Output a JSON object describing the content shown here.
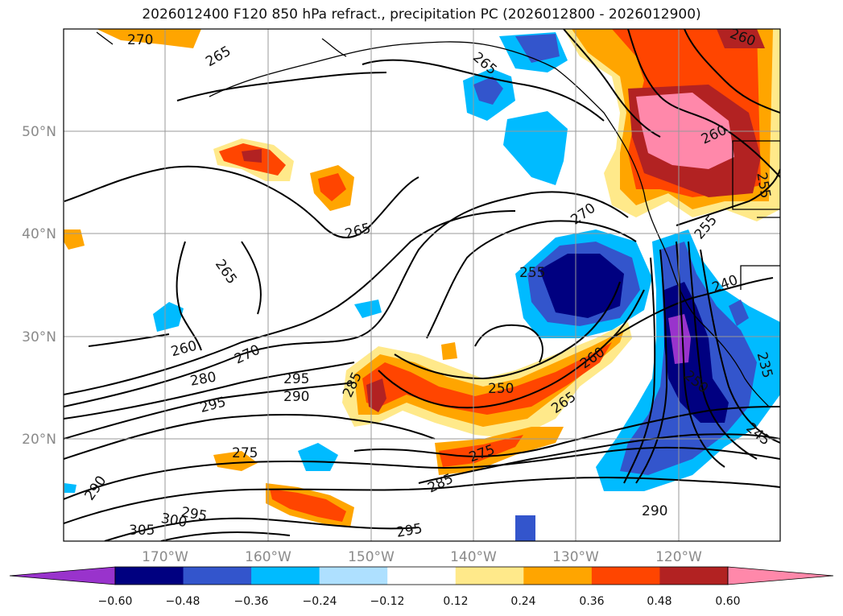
{
  "title": "2026012400 F120 850 hPa refract., precipitation PC (2026012800 - 2026012900)",
  "map": {
    "lon_labels": [
      "170°W",
      "160°W",
      "150°W",
      "140°W",
      "130°W",
      "120°W"
    ],
    "lat_labels": [
      "20°N",
      "30°N",
      "40°N",
      "50°N"
    ]
  },
  "contour_labels": [
    "270",
    "265",
    "265",
    "260",
    "265",
    "265",
    "260",
    "270",
    "255",
    "260",
    "270",
    "280",
    "295",
    "290",
    "295",
    "285",
    "250",
    "265",
    "260",
    "255",
    "240",
    "235",
    "250",
    "245",
    "275",
    "290",
    "300",
    "305",
    "295",
    "285",
    "275",
    "295",
    "290",
    "255"
  ],
  "colorbar": {
    "ticks": [
      "−0.60",
      "−0.48",
      "−0.36",
      "−0.24",
      "−0.12",
      "0.12",
      "0.24",
      "0.36",
      "0.48",
      "0.60"
    ],
    "colors": [
      "#9933cc",
      "#000080",
      "#3355cc",
      "#00bbff",
      "#aee0ff",
      "#ffffff",
      "#ffe98a",
      "#ffa500",
      "#ff4500",
      "#b22222",
      "#ff88aa"
    ]
  }
}
